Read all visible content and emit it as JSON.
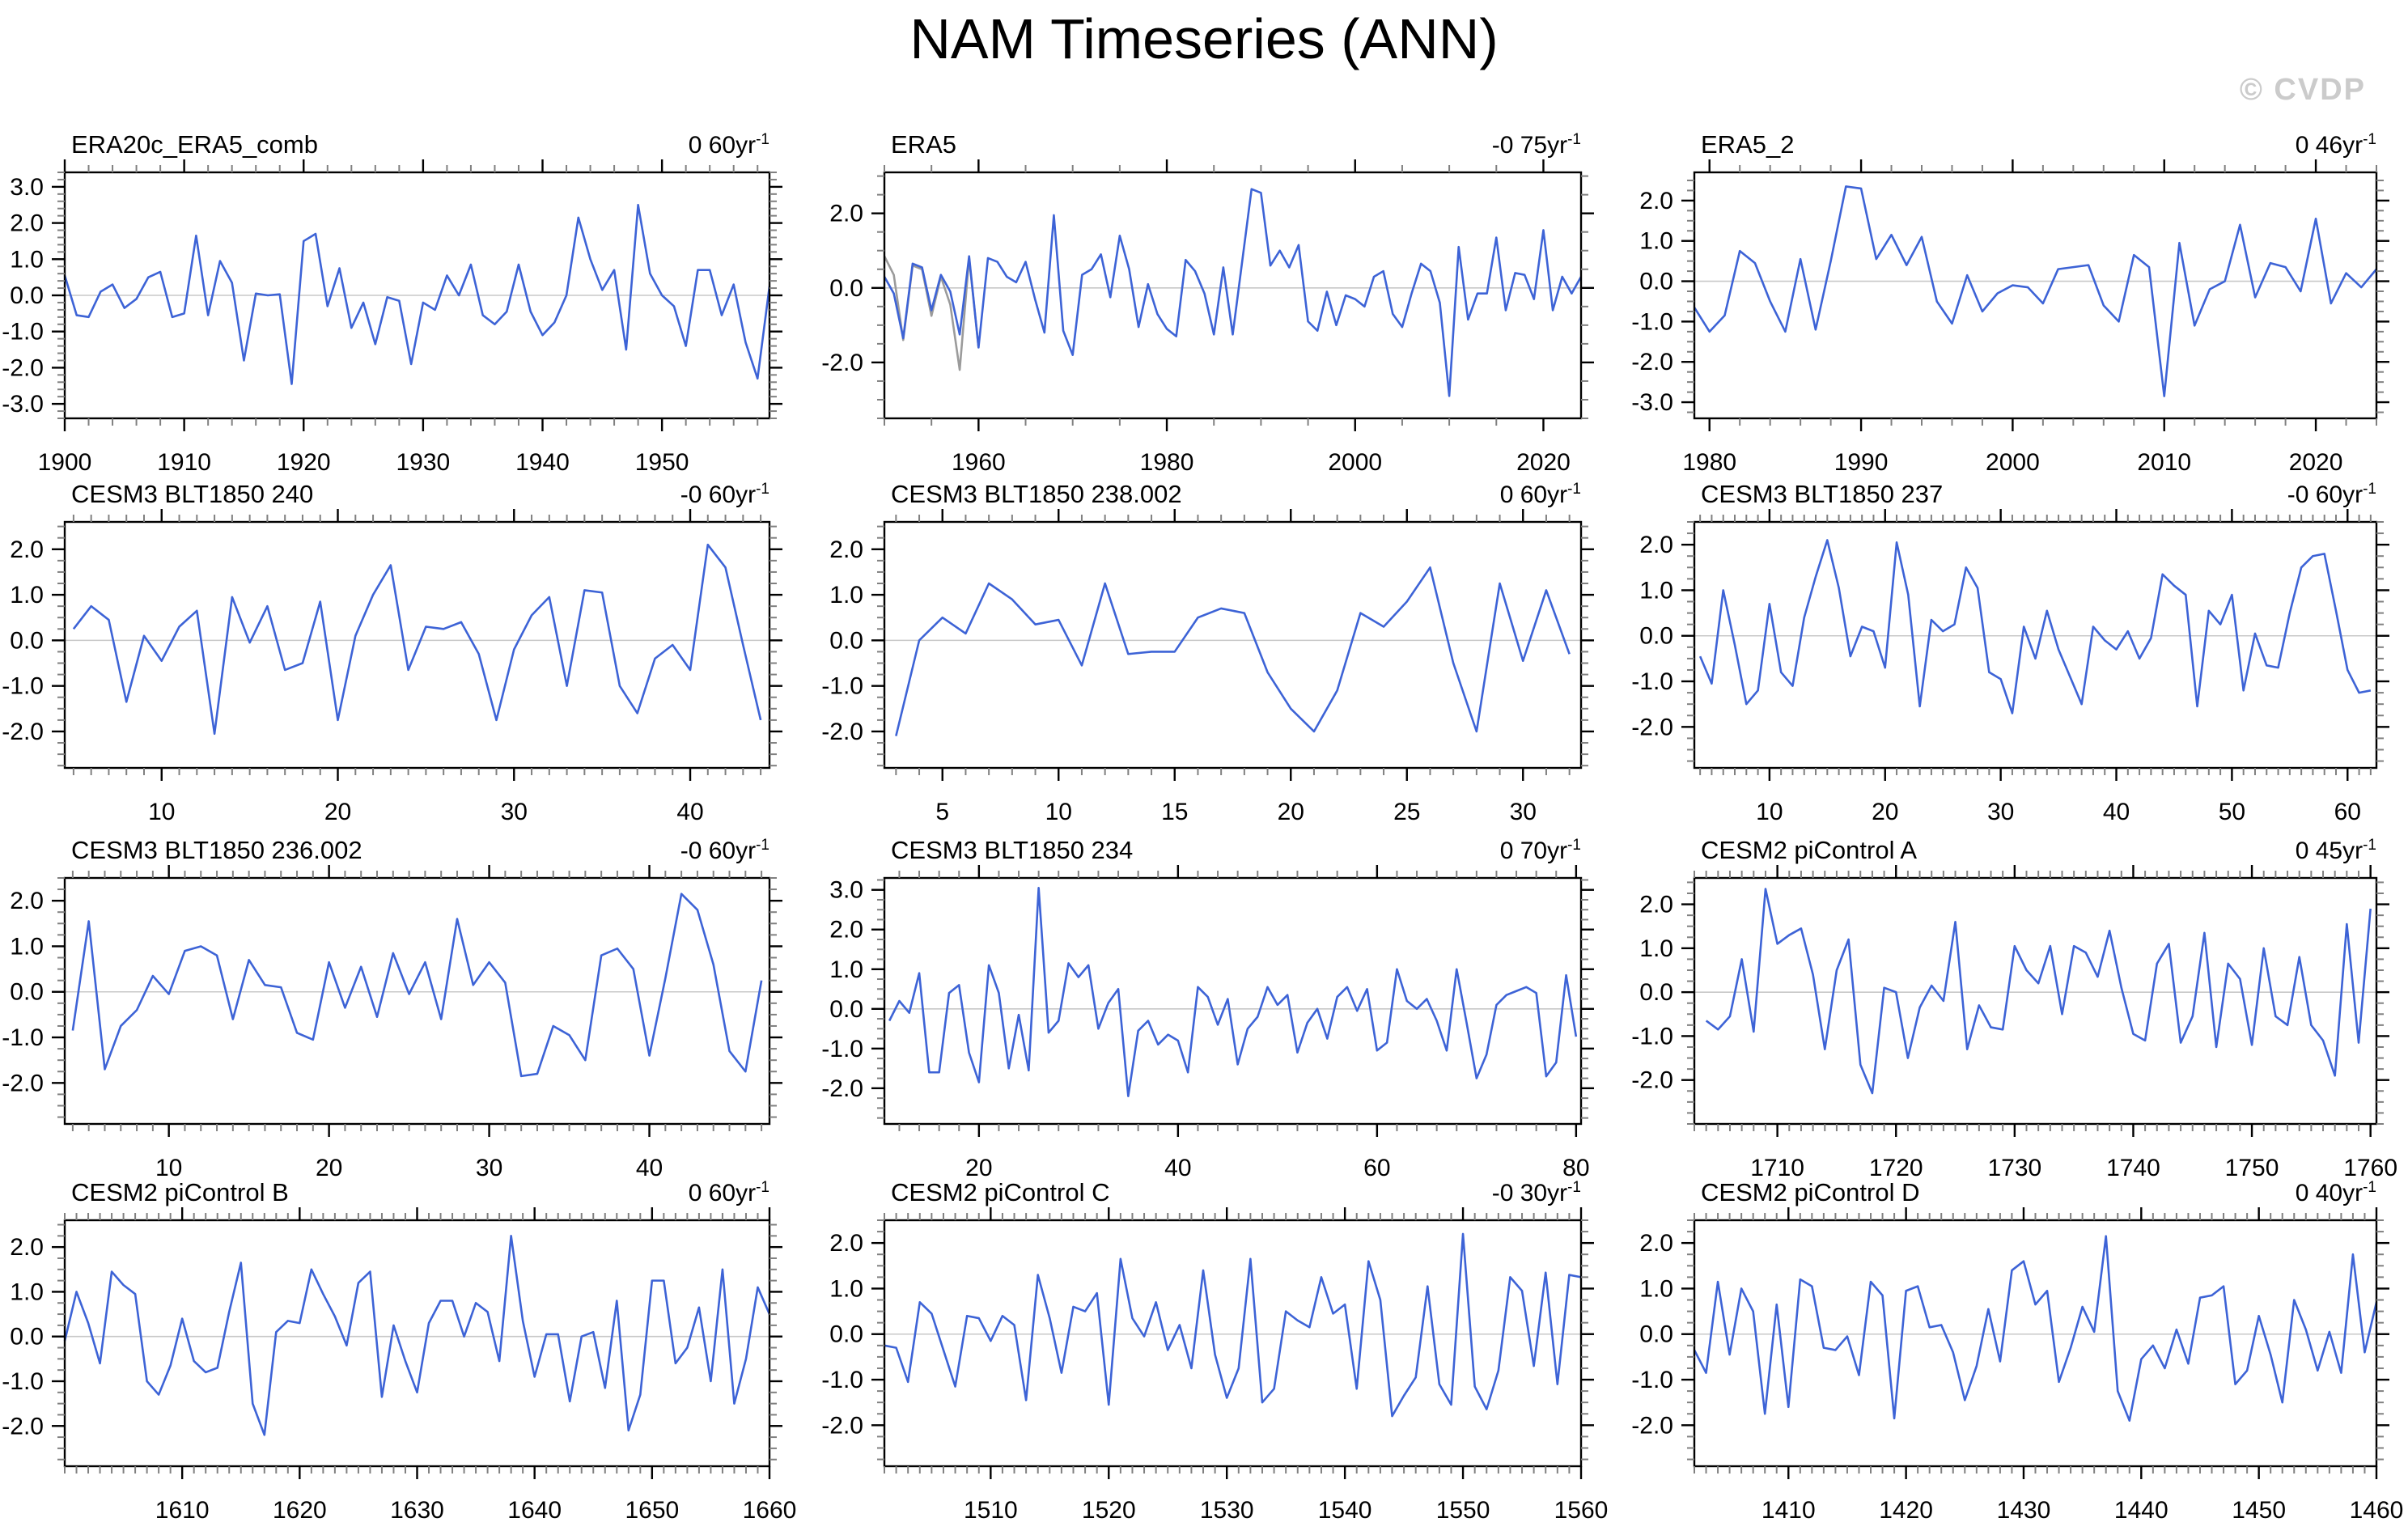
{
  "page_title": "NAM Timeseries (ANN)",
  "watermark": "© CVDP",
  "colors": {
    "series_line": "#3D63D6",
    "overlay_line": "#9B9B9B",
    "zero_line": "#C8C8C8",
    "frame": "#000000",
    "major_tick": "#000000",
    "minor_tick": "#808080",
    "watermark": "#CBCBCB",
    "text": "#000000"
  },
  "chart_data": [
    {
      "type": "line",
      "title": "ERA20c_ERA5_comb",
      "trend_value": "0 60yr",
      "trend_exp": "-1",
      "x_start": 1900,
      "xlim": [
        1900,
        1959
      ],
      "ylim": [
        -3.4,
        3.4
      ],
      "xticks": [
        1900,
        1910,
        1920,
        1930,
        1940,
        1950
      ],
      "yticks": [
        3.0,
        2.0,
        1.0,
        0.0,
        -1.0,
        -2.0,
        -3.0
      ],
      "x_minor_step": 2,
      "y_minor_step": 0.2,
      "values": [
        0.55,
        -0.55,
        -0.6,
        0.1,
        0.3,
        -0.35,
        -0.1,
        0.5,
        0.65,
        -0.6,
        -0.5,
        1.65,
        -0.55,
        0.95,
        0.35,
        -1.8,
        0.05,
        0.0,
        0.03,
        -2.45,
        1.5,
        1.7,
        -0.3,
        0.75,
        -0.9,
        -0.2,
        -1.35,
        -0.05,
        -0.15,
        -1.9,
        -0.2,
        -0.4,
        0.55,
        0.0,
        0.85,
        -0.55,
        -0.8,
        -0.45,
        0.85,
        -0.45,
        -1.1,
        -0.75,
        0.0,
        2.15,
        1.0,
        0.15,
        0.7,
        -1.5,
        2.5,
        0.6,
        0.0,
        -0.3,
        -1.4,
        0.7,
        0.7,
        -0.55,
        0.3,
        -1.3,
        -2.3,
        0.25
      ]
    },
    {
      "type": "line",
      "title": "ERA5",
      "trend_value": "-0 75yr",
      "trend_exp": "-1",
      "x_start": 1950,
      "xlim": [
        1950,
        2024
      ],
      "ylim": [
        -3.5,
        3.1
      ],
      "xticks": [
        1960,
        1980,
        2000,
        2020
      ],
      "yticks": [
        2.0,
        0.0,
        -2.0
      ],
      "x_minor_step": 5,
      "y_minor_step": 0.5,
      "values": [
        0.3,
        -0.15,
        -1.35,
        0.65,
        0.55,
        -0.6,
        0.35,
        -0.1,
        -1.25,
        0.85,
        -1.6,
        0.8,
        0.7,
        0.3,
        0.15,
        0.7,
        -0.3,
        -1.2,
        1.95,
        -1.15,
        -1.8,
        0.35,
        0.5,
        0.9,
        -0.25,
        1.4,
        0.5,
        -1.05,
        0.1,
        -0.7,
        -1.1,
        -1.3,
        0.75,
        0.45,
        -0.15,
        -1.25,
        0.55,
        -1.25,
        0.7,
        2.65,
        2.55,
        0.6,
        1.0,
        0.55,
        1.15,
        -0.9,
        -1.15,
        -0.1,
        -1.0,
        -0.2,
        -0.3,
        -0.5,
        0.3,
        0.45,
        -0.7,
        -1.05,
        -0.15,
        0.65,
        0.45,
        -0.4,
        -2.9,
        1.1,
        -0.85,
        -0.15,
        -0.15,
        1.35,
        -0.6,
        0.4,
        0.35,
        -0.3,
        1.55,
        -0.6,
        0.3,
        -0.15,
        0.3
      ],
      "overlay": {
        "name": "ERA20c overlap segment",
        "x_start": 1950,
        "values": [
          0.85,
          0.35,
          -1.4,
          0.6,
          0.5,
          -0.75,
          0.3,
          -0.45,
          -2.2,
          0.8,
          -1.6
        ]
      }
    },
    {
      "type": "line",
      "title": "ERA5_2",
      "trend_value": "0 46yr",
      "trend_exp": "-1",
      "x_start": 1979,
      "xlim": [
        1979,
        2024
      ],
      "ylim": [
        -3.4,
        2.7
      ],
      "xticks": [
        1980,
        1990,
        2000,
        2010,
        2020
      ],
      "yticks": [
        2.0,
        1.0,
        0.0,
        -1.0,
        -2.0,
        -3.0
      ],
      "x_minor_step": 2,
      "y_minor_step": 0.25,
      "values": [
        -0.65,
        -1.25,
        -0.85,
        0.75,
        0.45,
        -0.5,
        -1.25,
        0.55,
        -1.2,
        0.5,
        2.35,
        2.3,
        0.55,
        1.15,
        0.4,
        1.1,
        -0.5,
        -1.05,
        0.15,
        -0.75,
        -0.3,
        -0.1,
        -0.15,
        -0.55,
        0.3,
        0.35,
        0.4,
        -0.6,
        -1.0,
        0.65,
        0.35,
        -2.85,
        0.95,
        -1.1,
        -0.2,
        0.0,
        1.4,
        -0.4,
        0.45,
        0.35,
        -0.25,
        1.55,
        -0.55,
        0.2,
        -0.15,
        0.3
      ]
    },
    {
      "type": "line",
      "title": "CESM3 BLT1850 240",
      "trend_value": "-0 60yr",
      "trend_exp": "-1",
      "x_start": 5,
      "xlim": [
        4.5,
        44.5
      ],
      "ylim": [
        -2.8,
        2.6
      ],
      "xticks": [
        10,
        20,
        30,
        40
      ],
      "yticks": [
        2.0,
        1.0,
        0.0,
        -1.0,
        -2.0
      ],
      "x_minor_step": 1,
      "y_minor_step": 0.25,
      "values": [
        0.25,
        0.75,
        0.45,
        -1.35,
        0.1,
        -0.45,
        0.3,
        0.65,
        -2.05,
        0.95,
        -0.05,
        0.75,
        -0.65,
        -0.5,
        0.85,
        -1.75,
        0.1,
        1.0,
        1.65,
        -0.65,
        0.3,
        0.25,
        0.4,
        -0.3,
        -1.75,
        -0.2,
        0.55,
        0.95,
        -1.0,
        1.1,
        1.05,
        -1.0,
        -1.6,
        -0.4,
        -0.1,
        -0.65,
        2.1,
        1.6,
        -0.1,
        -1.75
      ]
    },
    {
      "type": "line",
      "title": "CESM3 BLT1850 238.002",
      "trend_value": "0 60yr",
      "trend_exp": "-1",
      "x_start": 3,
      "xlim": [
        2.5,
        32.5
      ],
      "ylim": [
        -2.8,
        2.6
      ],
      "xticks": [
        5,
        10,
        15,
        20,
        25,
        30
      ],
      "yticks": [
        2.0,
        1.0,
        0.0,
        -1.0,
        -2.0
      ],
      "x_minor_step": 1,
      "y_minor_step": 0.25,
      "values": [
        -2.1,
        0.0,
        0.5,
        0.15,
        1.25,
        0.9,
        0.35,
        0.45,
        -0.55,
        1.25,
        -0.3,
        -0.25,
        -0.25,
        0.5,
        0.7,
        0.6,
        -0.7,
        -1.5,
        -2.0,
        -1.1,
        0.6,
        0.3,
        0.85,
        1.6,
        -0.5,
        -2.0,
        1.25,
        -0.45,
        1.1,
        -0.3
      ]
    },
    {
      "type": "line",
      "title": "CESM3 BLT1850 237",
      "trend_value": "-0 60yr",
      "trend_exp": "-1",
      "x_start": 4,
      "xlim": [
        3.5,
        62.5
      ],
      "ylim": [
        -2.9,
        2.5
      ],
      "xticks": [
        10,
        20,
        30,
        40,
        50,
        60
      ],
      "yticks": [
        2.0,
        1.0,
        0.0,
        -1.0,
        -2.0
      ],
      "x_minor_step": 1,
      "y_minor_step": 0.25,
      "values": [
        -0.45,
        -1.05,
        1.0,
        -0.2,
        -1.5,
        -1.2,
        0.7,
        -0.8,
        -1.1,
        0.4,
        1.3,
        2.1,
        1.05,
        -0.45,
        0.2,
        0.1,
        -0.7,
        2.05,
        0.9,
        -1.55,
        0.35,
        0.1,
        0.25,
        1.5,
        1.05,
        -0.8,
        -0.95,
        -1.7,
        0.2,
        -0.5,
        0.55,
        -0.3,
        -0.9,
        -1.5,
        0.2,
        -0.1,
        -0.3,
        0.1,
        -0.5,
        -0.05,
        1.35,
        1.1,
        0.9,
        -1.55,
        0.55,
        0.25,
        0.9,
        -1.2,
        0.05,
        -0.65,
        -0.7,
        0.5,
        1.5,
        1.75,
        1.8,
        0.55,
        -0.75,
        -1.25,
        -1.2
      ]
    },
    {
      "type": "line",
      "title": "CESM3 BLT1850 236.002",
      "trend_value": "-0 60yr",
      "trend_exp": "-1",
      "x_start": 4,
      "xlim": [
        3.5,
        47.5
      ],
      "ylim": [
        -2.9,
        2.5
      ],
      "xticks": [
        10,
        20,
        30,
        40
      ],
      "yticks": [
        2.0,
        1.0,
        0.0,
        -1.0,
        -2.0
      ],
      "x_minor_step": 1,
      "y_minor_step": 0.25,
      "values": [
        -0.85,
        1.55,
        -1.7,
        -0.75,
        -0.4,
        0.35,
        -0.05,
        0.9,
        1.0,
        0.8,
        -0.6,
        0.7,
        0.15,
        0.1,
        -0.9,
        -1.05,
        0.65,
        -0.35,
        0.55,
        -0.55,
        0.85,
        -0.05,
        0.65,
        -0.6,
        1.6,
        0.15,
        0.65,
        0.2,
        -1.85,
        -1.8,
        -0.75,
        -0.95,
        -1.5,
        0.8,
        0.95,
        0.5,
        -1.4,
        0.3,
        2.15,
        1.8,
        0.6,
        -1.3,
        -1.75,
        0.25
      ]
    },
    {
      "type": "line",
      "title": "CESM3 BLT1850 234",
      "trend_value": "0 70yr",
      "trend_exp": "-1",
      "x_start": 11,
      "xlim": [
        10.5,
        80.5
      ],
      "ylim": [
        -2.9,
        3.3
      ],
      "xticks": [
        20,
        40,
        60,
        80
      ],
      "yticks": [
        3.0,
        2.0,
        1.0,
        0.0,
        -1.0,
        -2.0
      ],
      "x_minor_step": 2,
      "y_minor_step": 0.25,
      "values": [
        -0.3,
        0.2,
        -0.1,
        0.9,
        -1.6,
        -1.6,
        0.4,
        0.6,
        -1.1,
        -1.85,
        1.1,
        0.4,
        -1.5,
        -0.15,
        -1.55,
        3.05,
        -0.6,
        -0.3,
        1.15,
        0.8,
        1.1,
        -0.5,
        0.15,
        0.5,
        -2.2,
        -0.55,
        -0.3,
        -0.9,
        -0.65,
        -0.8,
        -1.6,
        0.55,
        0.3,
        -0.4,
        0.25,
        -1.4,
        -0.5,
        -0.2,
        0.55,
        0.1,
        0.35,
        -1.1,
        -0.35,
        0.0,
        -0.75,
        0.3,
        0.55,
        -0.05,
        0.5,
        -1.05,
        -0.85,
        1.0,
        0.2,
        0.0,
        0.25,
        -0.3,
        -1.05,
        1.0,
        -0.35,
        -1.75,
        -1.15,
        0.1,
        0.35,
        0.45,
        0.55,
        0.4,
        -1.7,
        -1.35,
        0.85,
        -0.7
      ]
    },
    {
      "type": "line",
      "title": "CESM2 piControl A",
      "trend_value": "0 45yr",
      "trend_exp": "-1",
      "x_start": 1704,
      "xlim": [
        1703,
        1760.5
      ],
      "ylim": [
        -3.0,
        2.6
      ],
      "xticks": [
        1710,
        1720,
        1730,
        1740,
        1750,
        1760
      ],
      "yticks": [
        2.0,
        1.0,
        0.0,
        -1.0,
        -2.0
      ],
      "x_minor_step": 1,
      "y_minor_step": 0.25,
      "values": [
        -0.65,
        -0.85,
        -0.55,
        0.75,
        -0.9,
        2.35,
        1.1,
        1.3,
        1.45,
        0.4,
        -1.3,
        0.5,
        1.2,
        -1.65,
        -2.3,
        0.1,
        0.0,
        -1.5,
        -0.35,
        0.15,
        -0.2,
        1.6,
        -1.3,
        -0.3,
        -0.8,
        -0.85,
        1.05,
        0.5,
        0.2,
        1.05,
        -0.5,
        1.05,
        0.9,
        0.35,
        1.4,
        0.1,
        -0.95,
        -1.1,
        0.65,
        1.1,
        -1.15,
        -0.55,
        1.35,
        -1.25,
        0.65,
        0.3,
        -1.2,
        1.0,
        -0.55,
        -0.75,
        0.8,
        -0.75,
        -1.1,
        -1.9,
        1.55,
        -1.15,
        1.9
      ]
    },
    {
      "type": "line",
      "title": "CESM2 piControl B",
      "trend_value": "0 60yr",
      "trend_exp": "-1",
      "x_start": 1600,
      "xlim": [
        1600,
        1660
      ],
      "ylim": [
        -2.9,
        2.6
      ],
      "xticks": [
        1610,
        1620,
        1630,
        1640,
        1650,
        1660
      ],
      "yticks": [
        2.0,
        1.0,
        0.0,
        -1.0,
        -2.0
      ],
      "x_minor_step": 1,
      "y_minor_step": 0.25,
      "values": [
        -0.1,
        1.0,
        0.3,
        -0.6,
        1.45,
        1.15,
        0.95,
        -1.0,
        -1.3,
        -0.65,
        0.4,
        -0.55,
        -0.8,
        -0.7,
        0.55,
        1.65,
        -1.5,
        -2.2,
        0.1,
        0.35,
        0.3,
        1.5,
        0.95,
        0.45,
        -0.2,
        1.2,
        1.45,
        -1.35,
        0.25,
        -0.55,
        -1.25,
        0.3,
        0.8,
        0.8,
        0.0,
        0.75,
        0.55,
        -0.55,
        2.25,
        0.35,
        -0.9,
        0.05,
        0.05,
        -1.45,
        0.0,
        0.1,
        -1.15,
        0.8,
        -2.1,
        -1.3,
        1.25,
        1.25,
        -0.6,
        -0.25,
        0.65,
        -1.0,
        1.5,
        -1.5,
        -0.5,
        1.1,
        0.5
      ]
    },
    {
      "type": "line",
      "title": "CESM2 piControl C",
      "trend_value": "-0 30yr",
      "trend_exp": "-1",
      "x_start": 1501,
      "xlim": [
        1501,
        1560
      ],
      "ylim": [
        -2.9,
        2.5
      ],
      "xticks": [
        1510,
        1520,
        1530,
        1540,
        1550,
        1560
      ],
      "yticks": [
        2.0,
        1.0,
        0.0,
        -1.0,
        -2.0
      ],
      "x_minor_step": 1,
      "y_minor_step": 0.25,
      "values": [
        -0.25,
        -0.3,
        -1.05,
        0.7,
        0.45,
        -0.35,
        -1.15,
        0.4,
        0.35,
        -0.15,
        0.4,
        0.2,
        -1.45,
        1.3,
        0.35,
        -0.85,
        0.6,
        0.5,
        0.9,
        -1.55,
        1.65,
        0.35,
        -0.05,
        0.7,
        -0.35,
        0.2,
        -0.75,
        1.4,
        -0.45,
        -1.4,
        -0.75,
        1.65,
        -1.5,
        -1.2,
        0.5,
        0.3,
        0.15,
        1.25,
        0.45,
        0.65,
        -1.2,
        1.6,
        0.75,
        -1.8,
        -1.35,
        -0.95,
        1.05,
        -1.1,
        -1.55,
        2.2,
        -1.15,
        -1.65,
        -0.8,
        1.25,
        0.95,
        -0.7,
        1.35,
        -1.1,
        1.3,
        1.25
      ]
    },
    {
      "type": "line",
      "title": "CESM2 piControl D",
      "trend_value": "0 40yr",
      "trend_exp": "-1",
      "x_start": 1402,
      "xlim": [
        1402,
        1460
      ],
      "ylim": [
        -2.9,
        2.5
      ],
      "xticks": [
        1410,
        1420,
        1430,
        1440,
        1450,
        1460
      ],
      "yticks": [
        2.0,
        1.0,
        0.0,
        -1.0,
        -2.0
      ],
      "x_minor_step": 1,
      "y_minor_step": 0.25,
      "values": [
        -0.35,
        -0.85,
        1.15,
        -0.45,
        1.0,
        0.5,
        -1.75,
        0.65,
        -1.6,
        1.2,
        1.05,
        -0.3,
        -0.35,
        -0.05,
        -0.9,
        1.15,
        0.85,
        -1.85,
        0.95,
        1.05,
        0.15,
        0.2,
        -0.4,
        -1.45,
        -0.7,
        0.55,
        -0.6,
        1.4,
        1.6,
        0.65,
        0.95,
        -1.05,
        -0.3,
        0.6,
        0.05,
        2.15,
        -1.25,
        -1.9,
        -0.55,
        -0.25,
        -0.75,
        0.1,
        -0.65,
        0.8,
        0.85,
        1.05,
        -1.1,
        -0.8,
        0.4,
        -0.45,
        -1.5,
        0.75,
        0.1,
        -0.8,
        0.05,
        -0.85,
        1.75,
        -0.4,
        0.7
      ]
    }
  ]
}
